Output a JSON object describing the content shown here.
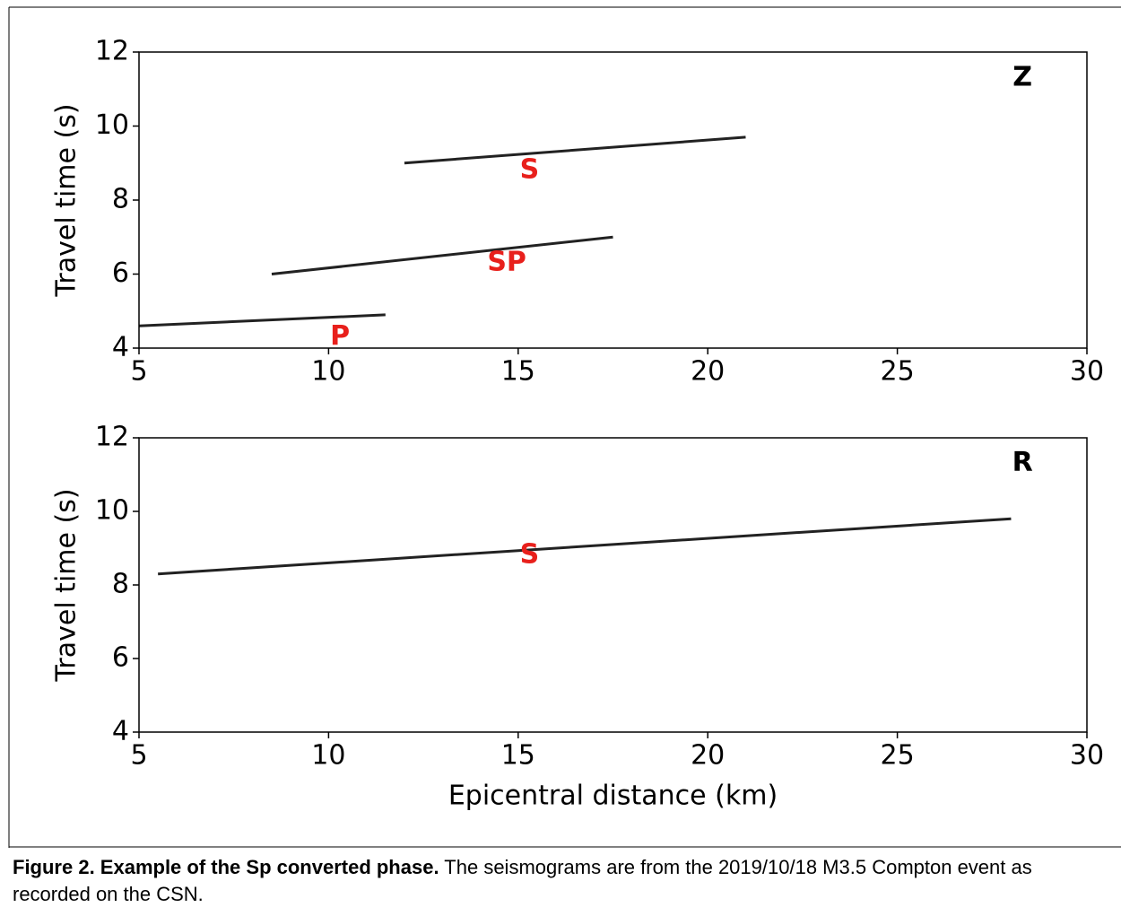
{
  "chart_data": [
    {
      "type": "seismogram",
      "ylabel": "Travel time (s)",
      "xlim": [
        5,
        30
      ],
      "xticks": [
        5,
        10,
        15,
        20,
        25,
        30
      ],
      "ylim": [
        4,
        12
      ],
      "yticks": [
        4,
        6,
        8,
        10,
        12
      ],
      "panel_label": {
        "text": "Z",
        "x": 28.3,
        "y": 11.3
      },
      "annotations": [
        {
          "text": "S",
          "x": 15.3,
          "y": 8.8,
          "color": "#e8201c"
        },
        {
          "text": "SP",
          "x": 14.7,
          "y": 6.3,
          "color": "#e8201c"
        },
        {
          "text": "P",
          "x": 10.3,
          "y": 4.3,
          "color": "#e8201c"
        }
      ],
      "phase_lines": [
        {
          "x": [
            5,
            11.5
          ],
          "y": [
            4.6,
            4.9
          ]
        },
        {
          "x": [
            8.5,
            17.5
          ],
          "y": [
            6.0,
            7.0
          ]
        },
        {
          "x": [
            12,
            21
          ],
          "y": [
            9.0,
            9.7
          ]
        }
      ]
    },
    {
      "type": "seismogram",
      "ylabel": "Travel time (s)",
      "xlabel": "Epicentral distance (km)",
      "xlim": [
        5,
        30
      ],
      "xticks": [
        5,
        10,
        15,
        20,
        25,
        30
      ],
      "ylim": [
        4,
        12
      ],
      "yticks": [
        4,
        6,
        8,
        10,
        12
      ],
      "panel_label": {
        "text": "R",
        "x": 28.3,
        "y": 11.3
      },
      "annotations": [
        {
          "text": "S",
          "x": 15.3,
          "y": 8.8,
          "color": "#e8201c"
        }
      ],
      "phase_lines": [
        {
          "x": [
            5.5,
            28
          ],
          "y": [
            8.3,
            9.8
          ]
        }
      ]
    }
  ],
  "caption": {
    "bold": "Figure 2. Example of the Sp converted phase.",
    "text": " The seismograms are from the 2019/10/18 M3.5 Compton event as recorded on the CSN."
  }
}
